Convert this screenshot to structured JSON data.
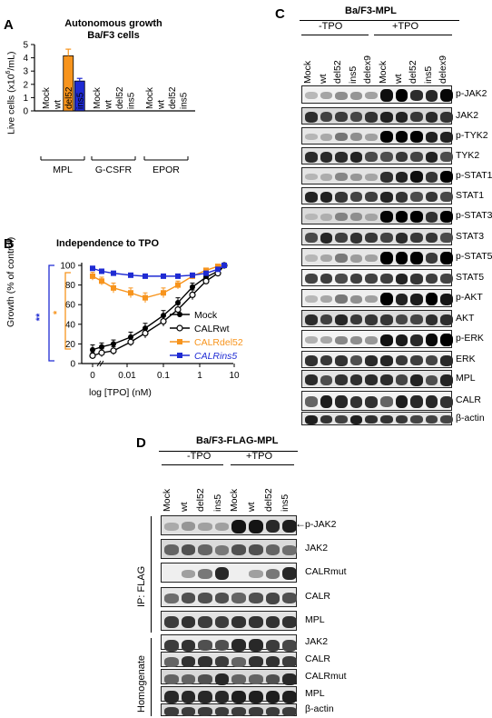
{
  "panelA": {
    "letter": "A",
    "title1": "Autonomous growth",
    "title2": "Ba/F3 cells",
    "ylabel_prefix": "Live cells (x10",
    "ylabel_exp": "6",
    "ylabel_suffix": "/mL)",
    "groups": [
      {
        "name": "MPL",
        "lanes": [
          "Mock",
          "wt",
          "del52",
          "ins5"
        ]
      },
      {
        "name": "G-CSFR",
        "lanes": [
          "Mock",
          "wt",
          "del52",
          "ins5"
        ]
      },
      {
        "name": "EPOR",
        "lanes": [
          "Mock",
          "wt",
          "del52",
          "ins5"
        ]
      }
    ],
    "yticks": [
      "0",
      "1",
      "2",
      "3",
      "4",
      "5"
    ]
  },
  "panelB": {
    "letter": "B",
    "title": "Independence to TPO",
    "ylabel": "Growth (% of control)",
    "xlabel": "log [TPO] (nM)",
    "xticks": [
      "0",
      "0.01",
      "0.1",
      "1",
      "10"
    ],
    "yticks": [
      "0",
      "20",
      "40",
      "60",
      "80",
      "100"
    ],
    "sig_blue": "**",
    "sig_orange": "*",
    "legend": [
      "Mock",
      "CALRwt",
      "CALRdel52",
      "CALRins5"
    ]
  },
  "panelC": {
    "letter": "C",
    "title": "Ba/F3-MPL",
    "cond_neg": "-TPO",
    "cond_pos": "+TPO",
    "lanes": [
      "Mock",
      "wt",
      "del52",
      "ins5",
      "delex9",
      "Mock",
      "wt",
      "del52",
      "ins5",
      "delex9"
    ],
    "blots": [
      "p-JAK2",
      "JAK2",
      "p-TYK2",
      "TYK2",
      "p-STAT1",
      "STAT1",
      "p-STAT3",
      "STAT3",
      "p-STAT5",
      "STAT5",
      "p-AKT",
      "AKT",
      "p-ERK",
      "ERK",
      "MPL",
      "CALR",
      "β-actin"
    ]
  },
  "panelD": {
    "letter": "D",
    "title": "Ba/F3-FLAG-MPL",
    "cond_neg": "-TPO",
    "cond_pos": "+TPO",
    "lanes": [
      "Mock",
      "wt",
      "del52",
      "ins5",
      "Mock",
      "wt",
      "del52",
      "ins5"
    ],
    "section_ip": "IP: FLAG",
    "section_hom": "Homogenate",
    "ip_blots": [
      "p-JAK2",
      "JAK2",
      "CALRmut",
      "CALR",
      "MPL"
    ],
    "hom_blots": [
      "JAK2",
      "CALR",
      "CALRmut",
      "MPL",
      "β-actin"
    ]
  },
  "chart_data": [
    {
      "type": "bar",
      "title": "Autonomous growth Ba/F3 cells",
      "ylabel": "Live cells (x10^6/mL)",
      "ylim": [
        0,
        5
      ],
      "categories": [
        "MPL Mock",
        "MPL wt",
        "MPL del52",
        "MPL ins5",
        "G-CSFR Mock",
        "G-CSFR wt",
        "G-CSFR del52",
        "G-CSFR ins5",
        "EPOR Mock",
        "EPOR wt",
        "EPOR del52",
        "EPOR ins5"
      ],
      "values": [
        0,
        0,
        4.15,
        2.25,
        0,
        0,
        0,
        0,
        0,
        0,
        0,
        0
      ],
      "errors": [
        0,
        0,
        0.5,
        0.2,
        0,
        0,
        0,
        0,
        0,
        0,
        0,
        0
      ],
      "colors": [
        "#000000",
        "#000000",
        "#f7941d",
        "#1f2bd3",
        "#000000",
        "#000000",
        "#000000",
        "#000000",
        "#000000",
        "#000000",
        "#000000",
        "#000000"
      ]
    },
    {
      "type": "line",
      "title": "Independence to TPO",
      "xlabel": "log [TPO] (nM)",
      "ylabel": "Growth (% of control)",
      "ylim": [
        0,
        100
      ],
      "x": [
        0,
        0.005,
        0.01,
        0.02,
        0.05,
        0.1,
        0.2,
        0.5,
        1,
        2,
        5
      ],
      "xtick_labels": [
        "0",
        "0.01",
        "0.1",
        "1",
        "10"
      ],
      "series": [
        {
          "name": "Mock",
          "color": "#000000",
          "marker": "filled-circle",
          "values": [
            14,
            17,
            20,
            27,
            36,
            49,
            62,
            78,
            88,
            94,
            100
          ],
          "errors": [
            5,
            4,
            4,
            5,
            5,
            5,
            5,
            4,
            3,
            2,
            0
          ]
        },
        {
          "name": "CALRwt",
          "color": "#000000",
          "marker": "open-circle",
          "values": [
            8,
            11,
            13,
            22,
            31,
            43,
            55,
            70,
            84,
            92,
            100
          ],
          "errors": [
            3,
            4,
            4,
            4,
            5,
            5,
            5,
            5,
            3,
            2,
            0
          ]
        },
        {
          "name": "CALRdel52",
          "color": "#f7941d",
          "marker": "filled-square",
          "values": [
            89,
            84,
            77,
            72,
            67,
            72,
            80,
            89,
            95,
            99,
            100
          ],
          "errors": [
            4,
            4,
            5,
            5,
            5,
            5,
            4,
            3,
            2,
            2,
            0
          ]
        },
        {
          "name": "CALRins5",
          "color": "#1f2bd3",
          "marker": "filled-square",
          "values": [
            97,
            94,
            92,
            90,
            89,
            89,
            89,
            90,
            92,
            96,
            100
          ],
          "errors": [
            2,
            2,
            2,
            2,
            2,
            2,
            2,
            2,
            2,
            2,
            0
          ]
        }
      ]
    }
  ]
}
